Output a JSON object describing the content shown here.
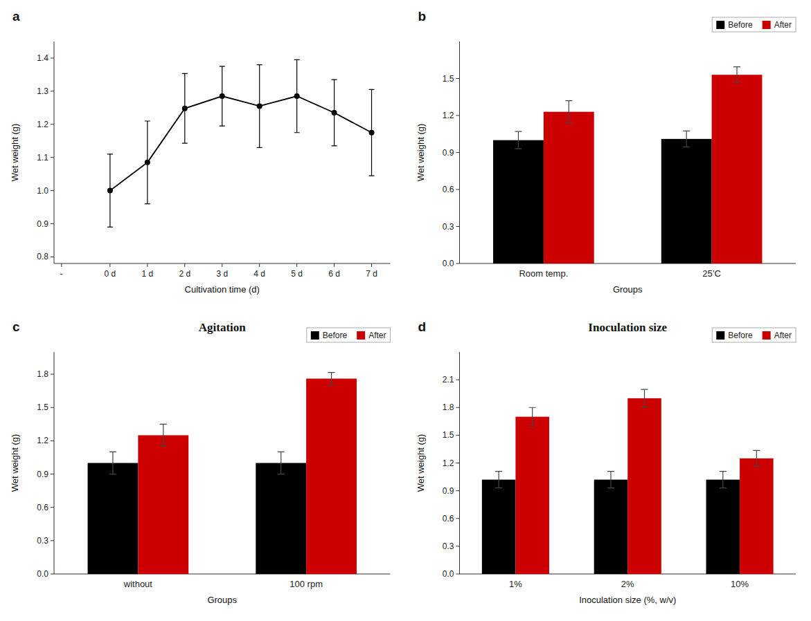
{
  "chart_data": [
    {
      "type": "line",
      "xlabel": "Cultivation time (d)",
      "ylabel": "Wet weight (g)",
      "annotations": [
        "a"
      ],
      "x": [
        1,
        2,
        3,
        4,
        5,
        6,
        7,
        8
      ],
      "values": [
        1.0,
        1.085,
        1.248,
        1.285,
        1.255,
        1.285,
        1.235,
        1.175
      ],
      "errors": [
        0.11,
        0.125,
        0.105,
        0.09,
        0.125,
        0.11,
        0.1,
        0.13
      ],
      "color": "#000000",
      "marker": "circle",
      "line_style": "solid",
      "xlim": [
        -0.5,
        8.5
      ],
      "xticks": [
        {
          "value": -0.3,
          "label": "-"
        },
        {
          "value": 1,
          "label": "0 d"
        },
        {
          "value": 2,
          "label": "1 d"
        },
        {
          "value": 3,
          "label": "2 d"
        },
        {
          "value": 4,
          "label": "3 d"
        },
        {
          "value": 5,
          "label": "4 d"
        },
        {
          "value": 6,
          "label": "5 d"
        },
        {
          "value": 7,
          "label": "6 d"
        },
        {
          "value": 8,
          "label": "7 d"
        }
      ],
      "ylim": [
        0.78,
        1.45
      ],
      "yticks": [
        0.8,
        0.9,
        {
          "value": 1.0,
          "label": "1.0"
        },
        1.1,
        1.2,
        1.3,
        1.4
      ],
      "grid": false
    },
    {
      "type": "bar",
      "xlabel": "Groups",
      "ylabel": "Wet weight (g)",
      "annotations": [
        "b"
      ],
      "categories": [
        "Room temp.",
        "25’C"
      ],
      "series": [
        {
          "name": "Before",
          "color": "#000000",
          "values": [
            1.0,
            1.01
          ],
          "errors": [
            0.07,
            0.065
          ]
        },
        {
          "name": "After",
          "color": "#cc0000",
          "values": [
            1.23,
            1.53
          ],
          "errors": [
            0.09,
            0.065
          ]
        }
      ],
      "ylim": [
        0.0,
        1.8
      ],
      "yticks": [
        {
          "value": 0.0,
          "label": "0.0"
        },
        0.3,
        0.6,
        0.9,
        1.2,
        1.5
      ],
      "legend": "upper right",
      "grid": false
    },
    {
      "type": "bar",
      "title": "Agitation",
      "xlabel": "Groups",
      "ylabel": "Wet weight (g)",
      "annotations": [
        "c"
      ],
      "categories": [
        "without",
        "100 rpm"
      ],
      "series": [
        {
          "name": "Before",
          "color": "#000000",
          "values": [
            1.0,
            1.0
          ],
          "errors": [
            0.1,
            0.1
          ]
        },
        {
          "name": "After",
          "color": "#cc0000",
          "values": [
            1.25,
            1.76
          ],
          "errors": [
            0.1,
            0.055
          ]
        }
      ],
      "ylim": [
        0.0,
        2.0
      ],
      "yticks": [
        {
          "value": 0.0,
          "label": "0.0"
        },
        0.3,
        0.6,
        0.9,
        1.2,
        1.5,
        1.8
      ],
      "legend": "upper right",
      "grid": false
    },
    {
      "type": "bar",
      "title": "Inoculation size",
      "xlabel": "Inoculation size (%, w/v)",
      "ylabel": "Wet weight (g)",
      "annotations": [
        "d"
      ],
      "categories": [
        "1%",
        "2%",
        "10%"
      ],
      "series": [
        {
          "name": "Before",
          "color": "#000000",
          "values": [
            1.02,
            1.02,
            1.02
          ],
          "errors": [
            0.09,
            0.09,
            0.09
          ]
        },
        {
          "name": "After",
          "color": "#cc0000",
          "values": [
            1.7,
            1.9,
            1.25
          ],
          "errors": [
            0.1,
            0.095,
            0.085
          ]
        }
      ],
      "ylim": [
        0.0,
        2.4
      ],
      "yticks": [
        {
          "value": 0.0,
          "label": "0.0"
        },
        0.3,
        0.6,
        0.9,
        1.2,
        1.5,
        1.8,
        2.1
      ],
      "legend": "upper right",
      "grid": false
    }
  ]
}
